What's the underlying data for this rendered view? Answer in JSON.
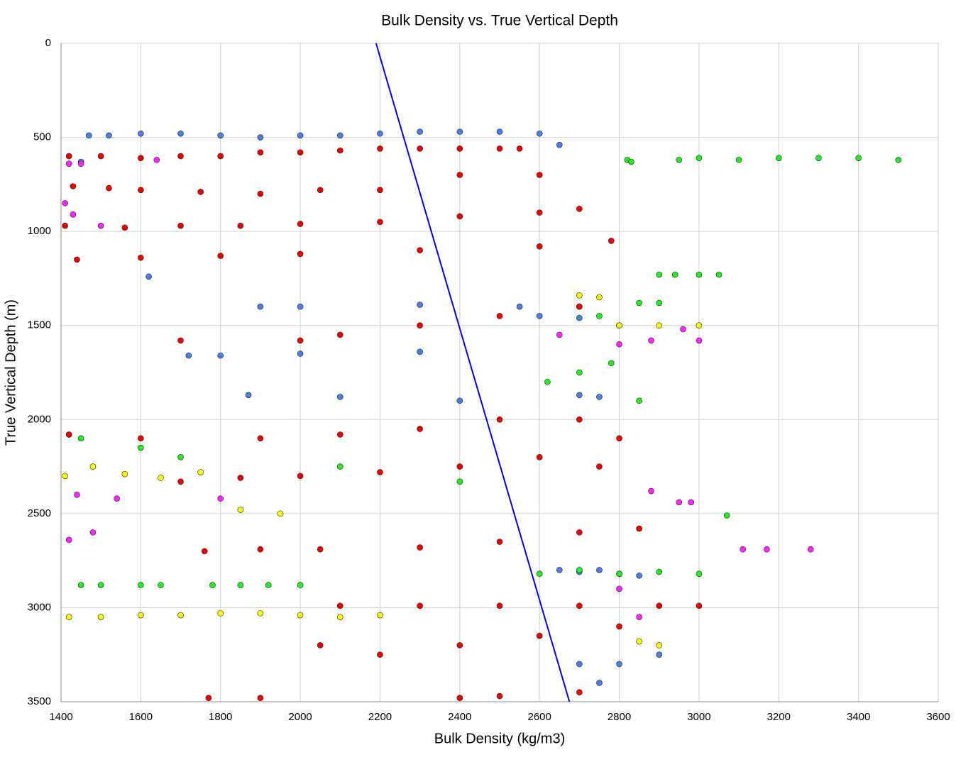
{
  "chart_data": {
    "type": "scatter",
    "title": "Bulk Density vs. True Vertical Depth",
    "x_label": "Bulk Density (kg/m3)",
    "y_label": "True Vertical Depth (m)",
    "xlim": [
      1400,
      3600
    ],
    "xticks": [
      1400,
      1600,
      1800,
      2000,
      2200,
      2400,
      2600,
      2800,
      3000,
      3200,
      3400,
      3600
    ],
    "ylim": [
      0,
      3500
    ],
    "yticks": [
      0,
      500,
      1000,
      1500,
      2000,
      2500,
      3000,
      3500
    ],
    "y_inverted": true,
    "grid": true,
    "series": [
      {
        "type": "scatter",
        "color": "#4a7fe8",
        "x": [
          1470,
          1520,
          1600,
          1700,
          1800,
          1900,
          2000,
          2100,
          2200,
          2300,
          2400,
          2500,
          2600,
          2650,
          1620,
          1450,
          1900,
          2000,
          2300,
          2550,
          1720,
          1800,
          2000,
          2300,
          2600,
          2700,
          1870,
          2100,
          2400,
          2700,
          2750,
          2650,
          2700,
          2750,
          2800,
          2850,
          2700,
          2800,
          2900,
          2750
        ],
        "values": [
          490,
          490,
          480,
          480,
          490,
          500,
          490,
          490,
          480,
          470,
          470,
          470,
          480,
          540,
          1240,
          630,
          1400,
          1400,
          1390,
          1400,
          1660,
          1660,
          1650,
          1640,
          1450,
          1460,
          1870,
          1880,
          1900,
          1870,
          1880,
          2800,
          2810,
          2800,
          2820,
          2830,
          3300,
          3300,
          3250,
          3400
        ]
      },
      {
        "type": "scatter",
        "color": "#22ee22",
        "x": [
          2820,
          2830,
          2950,
          3000,
          3100,
          3200,
          3300,
          3400,
          3500,
          2900,
          2940,
          3000,
          3050,
          2700,
          2750,
          2800,
          2850,
          2900,
          1420,
          1450,
          1600,
          1700,
          2100,
          2400,
          1450,
          1500,
          1600,
          1650,
          1780,
          1850,
          1920,
          2000,
          2600,
          2700,
          2800,
          2900,
          3000,
          3070,
          2620,
          2700,
          2780,
          2850
        ],
        "values": [
          620,
          630,
          620,
          610,
          620,
          610,
          610,
          610,
          620,
          1230,
          1230,
          1230,
          1230,
          1400,
          1450,
          1500,
          1380,
          1380,
          2080,
          2100,
          2150,
          2200,
          2250,
          2330,
          2880,
          2880,
          2880,
          2880,
          2880,
          2880,
          2880,
          2880,
          2820,
          2800,
          2820,
          2810,
          2820,
          2510,
          1800,
          1750,
          1700,
          1900
        ]
      },
      {
        "type": "scatter",
        "color": "#ffff00",
        "x": [
          1420,
          1500,
          1600,
          1700,
          1800,
          1900,
          2000,
          2100,
          2200,
          1410,
          1480,
          1560,
          1650,
          1750,
          1850,
          1950,
          2700,
          2750,
          2800,
          2900,
          3000,
          2850,
          2900
        ],
        "values": [
          3050,
          3050,
          3040,
          3040,
          3030,
          3030,
          3040,
          3050,
          3040,
          2300,
          2250,
          2290,
          2310,
          2280,
          2480,
          2500,
          1340,
          1350,
          1500,
          1500,
          1500,
          3180,
          3200
        ]
      },
      {
        "type": "scatter",
        "color": "#ff22ff",
        "x": [
          1420,
          1450,
          1640,
          1410,
          1430,
          1500,
          1420,
          1480,
          2650,
          2800,
          2880,
          2960,
          3000,
          1440,
          1540,
          1800,
          2880,
          2950,
          2980,
          3110,
          3170,
          3280,
          2800,
          2850
        ],
        "values": [
          640,
          640,
          620,
          850,
          910,
          970,
          2640,
          2600,
          1550,
          1600,
          1580,
          1520,
          1580,
          2400,
          2420,
          2420,
          2380,
          2440,
          2440,
          2690,
          2690,
          2690,
          2900,
          3050
        ]
      },
      {
        "type": "scatter",
        "color": "#ee0000",
        "x": [
          1420,
          1500,
          1600,
          1700,
          1800,
          1900,
          2000,
          2100,
          2200,
          2300,
          2400,
          2500,
          2550,
          1430,
          1520,
          1600,
          1750,
          1900,
          2050,
          2200,
          2400,
          2600,
          1410,
          1560,
          1700,
          1850,
          2000,
          2200,
          2400,
          2600,
          2700,
          1440,
          1600,
          1800,
          2000,
          2300,
          2600,
          2780,
          1700,
          2000,
          2100,
          2300,
          2500,
          2700,
          1420,
          1600,
          1900,
          2100,
          2300,
          2500,
          2700,
          2800,
          1700,
          1850,
          2000,
          2200,
          2400,
          2600,
          2750,
          1760,
          1900,
          2050,
          2300,
          2500,
          2700,
          2850,
          2100,
          2300,
          2500,
          2700,
          2900,
          3000,
          2050,
          2200,
          2400,
          2600,
          2800,
          1770,
          1900,
          2400,
          2500,
          2700
        ],
        "values": [
          600,
          600,
          610,
          600,
          600,
          580,
          580,
          570,
          560,
          560,
          560,
          560,
          560,
          760,
          770,
          780,
          790,
          800,
          780,
          780,
          700,
          700,
          970,
          980,
          970,
          970,
          960,
          950,
          920,
          900,
          880,
          1150,
          1140,
          1130,
          1120,
          1100,
          1080,
          1050,
          1580,
          1580,
          1550,
          1500,
          1450,
          1400,
          2080,
          2100,
          2100,
          2080,
          2050,
          2000,
          2000,
          2100,
          2330,
          2310,
          2300,
          2280,
          2250,
          2200,
          2250,
          2700,
          2690,
          2690,
          2680,
          2650,
          2600,
          2580,
          2990,
          2990,
          2990,
          2990,
          2990,
          2990,
          3200,
          3250,
          3200,
          3150,
          3100,
          3480,
          3480,
          3480,
          3470,
          3450
        ]
      },
      {
        "type": "line",
        "color": "#0000ee",
        "x": [
          2190,
          2675
        ],
        "values": [
          0,
          3500
        ]
      }
    ]
  }
}
